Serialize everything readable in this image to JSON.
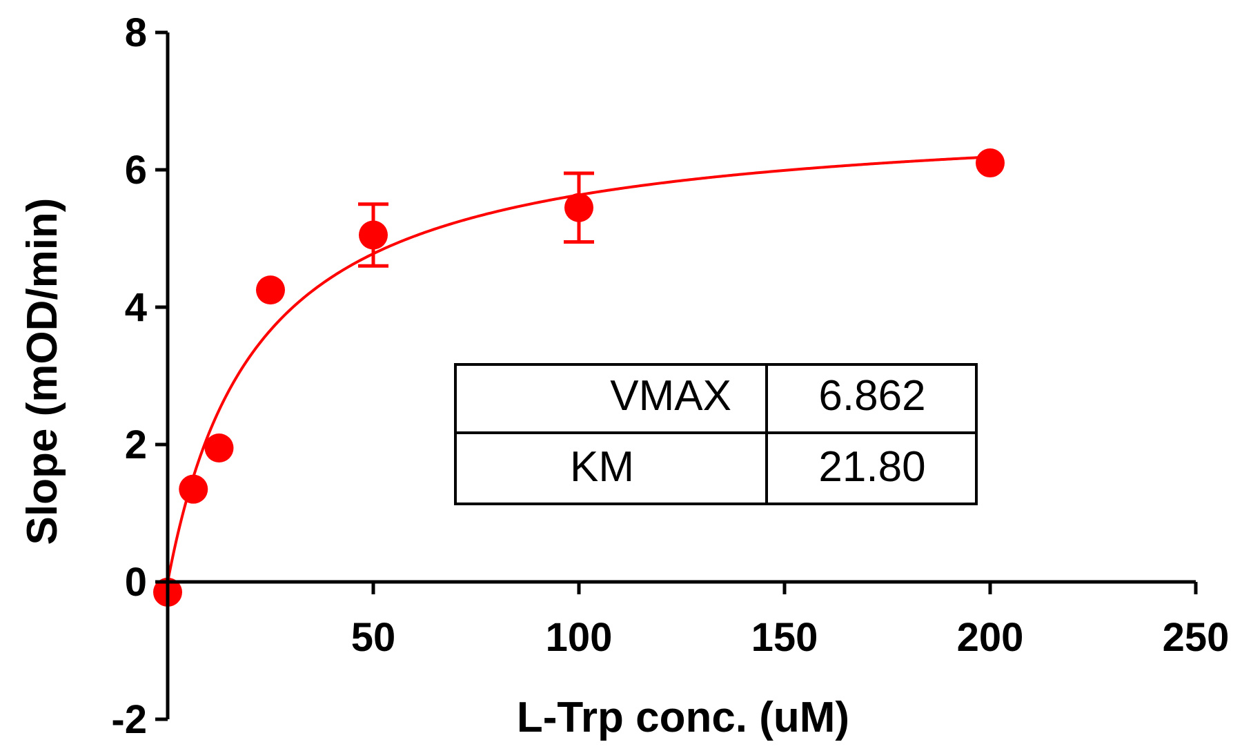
{
  "chart_data": {
    "type": "scatter",
    "xlabel": "L-Trp conc. (uM)",
    "ylabel": "Slope (mOD/min)",
    "xlim": [
      0,
      250
    ],
    "ylim": [
      -2,
      8
    ],
    "x_ticks": [
      50,
      100,
      150,
      200,
      250
    ],
    "y_ticks": [
      -2,
      0,
      2,
      4,
      6,
      8
    ],
    "grid": false,
    "color": "#ff0000",
    "series": [
      {
        "points": [
          {
            "x": 0,
            "y": -0.15,
            "err": 0
          },
          {
            "x": 6.25,
            "y": 1.35,
            "err": 0
          },
          {
            "x": 12.5,
            "y": 1.95,
            "err": 0
          },
          {
            "x": 25,
            "y": 4.25,
            "err": 0
          },
          {
            "x": 50,
            "y": 5.05,
            "err": 0.45
          },
          {
            "x": 100,
            "y": 5.45,
            "err": 0.5
          },
          {
            "x": 200,
            "y": 6.1,
            "err": 0
          }
        ]
      }
    ],
    "fit": {
      "model": "michaelis-menten",
      "vmax": 6.862,
      "km": 21.8,
      "x_range": [
        0,
        200
      ]
    },
    "table": [
      {
        "label": "VMAX",
        "value": "6.862"
      },
      {
        "label": "KM",
        "value": "21.80"
      }
    ]
  }
}
